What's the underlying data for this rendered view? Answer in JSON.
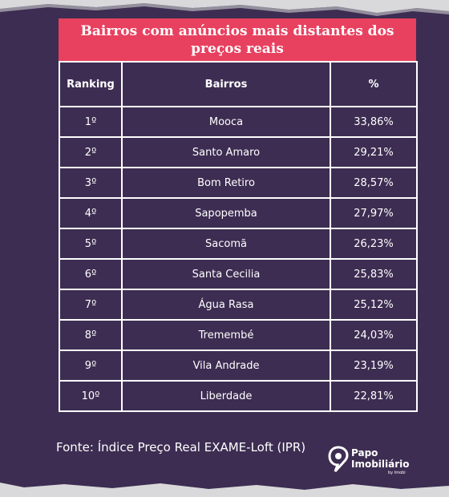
{
  "title": "Bairros com anúncios mais distantes dos preços reais",
  "table": {
    "headers": {
      "rank": "Ranking",
      "neighborhood": "Bairros",
      "percent": "%"
    },
    "rows": [
      {
        "rank": "1º",
        "neighborhood": "Mooca",
        "percent": "33,86%"
      },
      {
        "rank": "2º",
        "neighborhood": "Santo Amaro",
        "percent": "29,21%"
      },
      {
        "rank": "3º",
        "neighborhood": "Bom Retiro",
        "percent": "28,57%"
      },
      {
        "rank": "4º",
        "neighborhood": "Sapopemba",
        "percent": "27,97%"
      },
      {
        "rank": "5º",
        "neighborhood": "Sacomã",
        "percent": "26,23%"
      },
      {
        "rank": "6º",
        "neighborhood": "Santa Cecilia",
        "percent": "25,83%"
      },
      {
        "rank": "7º",
        "neighborhood": "Água Rasa",
        "percent": "25,12%"
      },
      {
        "rank": "8º",
        "neighborhood": "Tremembé",
        "percent": "24,03%"
      },
      {
        "rank": "9º",
        "neighborhood": "Vila Andrade",
        "percent": "23,19%"
      },
      {
        "rank": "10º",
        "neighborhood": "Liberdade",
        "percent": "22,81%"
      }
    ]
  },
  "source": "Fonte: Índice Preço Real EXAME-Loft (IPR)",
  "logo": {
    "line1": "Papo",
    "line2": "Imobiliário",
    "sub": "by Imobi"
  },
  "colors": {
    "background": "#3d2d52",
    "accent": "#e8415f",
    "paper": "#d9d9db"
  }
}
